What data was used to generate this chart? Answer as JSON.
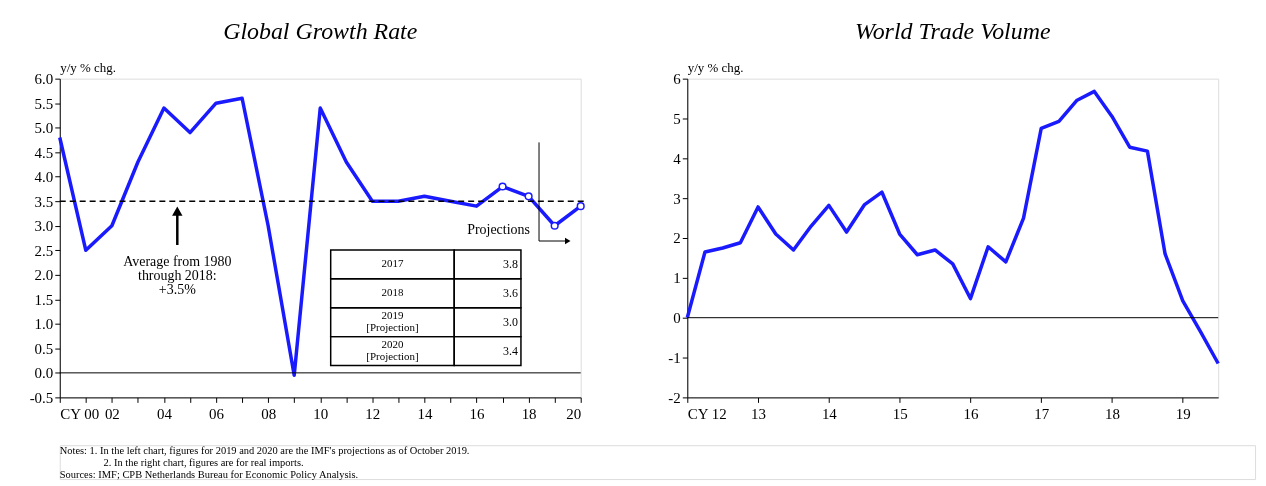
{
  "chart_data": [
    {
      "type": "line",
      "title": "Global Growth Rate",
      "ylabel": "y/y % chg.",
      "series": [
        {
          "color": "#1a1aff",
          "x": [
            2000,
            2001,
            2002,
            2003,
            2004,
            2005,
            2006,
            2007,
            2008,
            2009,
            2010,
            2011,
            2012,
            2013,
            2014,
            2015,
            2016,
            2017
          ],
          "values": [
            4.8,
            2.5,
            3.0,
            4.3,
            5.4,
            4.9,
            5.5,
            5.6,
            3.0,
            -0.05,
            5.4,
            4.3,
            3.5,
            3.5,
            3.6,
            3.5,
            3.4,
            3.8
          ]
        },
        {
          "color": "#1a1aff",
          "marker": "circle",
          "x": [
            2017,
            2018,
            2019,
            2020
          ],
          "values": [
            3.8,
            3.6,
            3.0,
            3.4
          ]
        }
      ],
      "xlim": [
        2000,
        2020
      ],
      "xticks": [
        {
          "value": 2000,
          "label": "CY 00"
        },
        {
          "value": 2001,
          "label": null
        },
        {
          "value": 2002,
          "label": "02"
        },
        {
          "value": 2003,
          "label": null
        },
        {
          "value": 2004,
          "label": "04"
        },
        {
          "value": 2005,
          "label": null
        },
        {
          "value": 2006,
          "label": "06"
        },
        {
          "value": 2007,
          "label": null
        },
        {
          "value": 2008,
          "label": "08"
        },
        {
          "value": 2009,
          "label": null
        },
        {
          "value": 2010,
          "label": "10"
        },
        {
          "value": 2011,
          "label": null
        },
        {
          "value": 2012,
          "label": "12"
        },
        {
          "value": 2013,
          "label": null
        },
        {
          "value": 2014,
          "label": "14"
        },
        {
          "value": 2015,
          "label": null
        },
        {
          "value": 2016,
          "label": "16"
        },
        {
          "value": 2017,
          "label": null
        },
        {
          "value": 2018,
          "label": "18"
        },
        {
          "value": 2019,
          "label": null
        },
        {
          "value": 2020,
          "label": "20"
        }
      ],
      "ylim": [
        -0.5,
        6.0
      ],
      "yticks": [
        {
          "value": -0.5,
          "label": "-0.5"
        },
        {
          "value": 0,
          "label": "0.0"
        },
        {
          "value": 0.5,
          "label": "0.5"
        },
        {
          "value": 1,
          "label": "1.0"
        },
        {
          "value": 1.5,
          "label": "1.5"
        },
        {
          "value": 2,
          "label": "2.0"
        },
        {
          "value": 2.5,
          "label": "2.5"
        },
        {
          "value": 3,
          "label": "3.0"
        },
        {
          "value": 3.5,
          "label": "3.5"
        },
        {
          "value": 4,
          "label": "4.0"
        },
        {
          "value": 4.5,
          "label": "4.5"
        },
        {
          "value": 5,
          "label": "5.0"
        },
        {
          "value": 5.5,
          "label": "5.5"
        },
        {
          "value": 6,
          "label": "6.0"
        }
      ],
      "ref_lines": [
        {
          "axis": "y",
          "value": 3.5,
          "label": "Average from 1980 through 2018: +3.5%",
          "line_style": "dashed",
          "color": "#000000"
        },
        {
          "axis": "y",
          "value": 0,
          "color": "#000000"
        },
        {
          "axis": "x",
          "value": 2018.4,
          "label": "Projections",
          "color": "#000000"
        }
      ],
      "annotations": [
        "2017",
        "3.8",
        "2018",
        "3.6",
        "2019 [Projection]",
        "3.0",
        "2020 [Projection]",
        "3.4",
        "Notes: 1. In the left chart, figures for 2019 and 2020 are the IMF's projections as of October 2019.",
        "2. In the right chart, figures are for real imports.",
        "Sources: IMF; CPB Netherlands Bureau for Economic Policy Analysis."
      ],
      "grid": false,
      "legend": false,
      "line_style": "solid"
    },
    {
      "type": "line",
      "title": "World Trade Volume",
      "ylabel": "y/y % chg.",
      "series": [
        {
          "color": "#1a1aff",
          "x": [
            2012,
            2012.25,
            2012.5,
            2012.75,
            2013,
            2013.25,
            2013.5,
            2013.75,
            2014,
            2014.25,
            2014.5,
            2014.75,
            2015,
            2015.25,
            2015.5,
            2015.75,
            2016,
            2016.25,
            2016.5,
            2016.75,
            2017,
            2017.25,
            2017.5,
            2017.75,
            2018,
            2018.25,
            2018.5,
            2018.75,
            2019,
            2019.25,
            2019.5
          ],
          "values": [
            0.0,
            1.65,
            1.75,
            1.88,
            2.78,
            2.1,
            1.7,
            2.3,
            2.82,
            2.15,
            2.83,
            3.15,
            2.1,
            1.58,
            1.7,
            1.35,
            0.48,
            1.78,
            1.4,
            2.5,
            4.75,
            4.93,
            5.45,
            5.68,
            5.05,
            4.28,
            4.18,
            1.6,
            0.42,
            -0.35,
            -1.15
          ]
        }
      ],
      "xlim": [
        2012,
        2019.5
      ],
      "xticks": [
        {
          "value": 2012,
          "label": "CY 12"
        },
        {
          "value": 2013,
          "label": "13"
        },
        {
          "value": 2014,
          "label": "14"
        },
        {
          "value": 2015,
          "label": "15"
        },
        {
          "value": 2016,
          "label": "16"
        },
        {
          "value": 2017,
          "label": "17"
        },
        {
          "value": 2018,
          "label": "18"
        },
        {
          "value": 2019,
          "label": "19"
        }
      ],
      "ylim": [
        -2,
        6
      ],
      "yticks": [
        -2,
        -1,
        0,
        1,
        2,
        3,
        4,
        5,
        6
      ],
      "ref_lines": [
        {
          "axis": "y",
          "value": 0,
          "color": "#000000"
        }
      ],
      "grid": false,
      "legend": false,
      "line_style": "solid"
    }
  ]
}
